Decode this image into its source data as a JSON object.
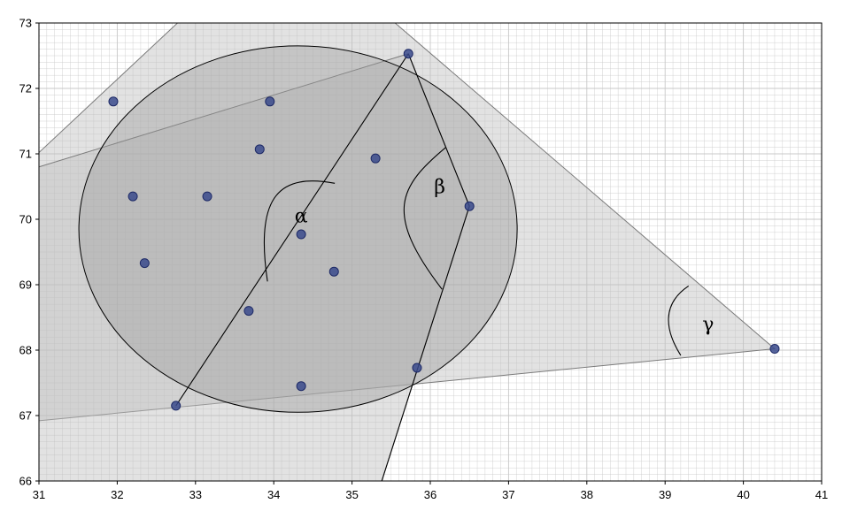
{
  "chart_data": {
    "type": "scatter",
    "title": "",
    "xlabel": "",
    "ylabel": "",
    "xlim": [
      31,
      41
    ],
    "ylim": [
      66,
      73
    ],
    "xticks": [
      "31",
      "32",
      "33",
      "34",
      "35",
      "36",
      "37",
      "38",
      "39",
      "40",
      "41"
    ],
    "yticks": [
      "66",
      "67",
      "68",
      "69",
      "70",
      "71",
      "72",
      "73"
    ],
    "grid": true,
    "series": [
      {
        "values": [
          [
            31.95,
            71.8
          ],
          [
            33.95,
            71.8
          ],
          [
            33.82,
            71.07
          ],
          [
            35.3,
            70.93
          ],
          [
            32.2,
            70.35
          ],
          [
            33.15,
            70.35
          ],
          [
            32.35,
            69.33
          ],
          [
            34.35,
            69.77
          ],
          [
            34.77,
            69.2
          ],
          [
            33.68,
            68.6
          ],
          [
            35.83,
            67.73
          ],
          [
            34.35,
            67.45
          ],
          [
            32.75,
            67.15
          ],
          [
            35.72,
            72.53
          ],
          [
            36.5,
            70.2
          ],
          [
            40.4,
            68.02
          ]
        ]
      }
    ],
    "circle": {
      "center": [
        34.31,
        69.85
      ],
      "radius": 2.8
    },
    "line_endpoints": {
      "alpha": [
        [
          32.75,
          67.15
        ],
        [
          35.72,
          72.53
        ]
      ],
      "beta": [
        [
          35.72,
          72.53
        ],
        [
          36.5,
          70.2
        ],
        [
          35.38,
          66.0
        ]
      ],
      "gamma": [
        [
          31.0,
          66.92
        ],
        [
          40.4,
          68.02
        ]
      ]
    },
    "shaded_regions": [
      [
        [
          31.0,
          71.02
        ],
        [
          32.77,
          73.0
        ],
        [
          35.55,
          73.0
        ],
        [
          40.4,
          68.02
        ],
        [
          31.0,
          66.92
        ]
      ],
      [
        [
          31.0,
          70.8
        ],
        [
          35.72,
          72.53
        ],
        [
          36.5,
          70.2
        ],
        [
          35.38,
          66.0
        ],
        [
          31.0,
          66.0
        ]
      ]
    ],
    "annotations": [
      {
        "text": "α",
        "x": 34.35,
        "y": 69.95
      },
      {
        "text": "β",
        "x": 36.12,
        "y": 70.4
      },
      {
        "text": "γ",
        "x": 39.55,
        "y": 68.3
      }
    ],
    "colors": {
      "point": "#3a4a8c",
      "point_stroke": "#1e2a66",
      "region": "#bfbfbf",
      "circle_fill": "#9a9a9a",
      "grid": "#c8c8c8",
      "line": "#000000"
    }
  }
}
